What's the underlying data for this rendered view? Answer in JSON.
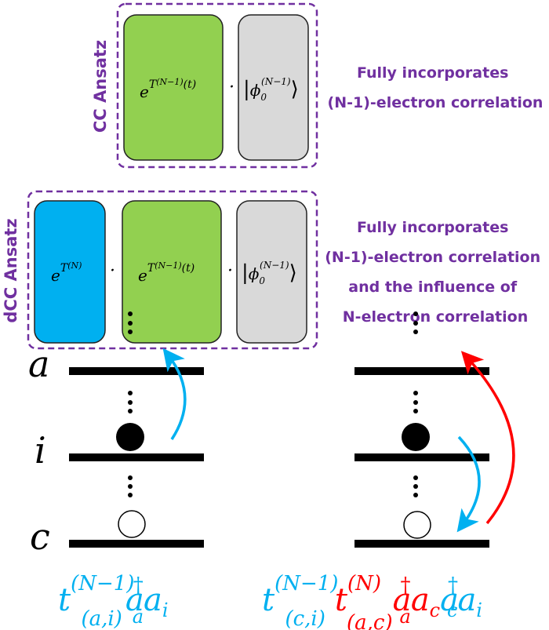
{
  "colors": {
    "purple": "#7030a0",
    "green": "#92d050",
    "blue": "#00b0f0",
    "gray": "#d9d9d9",
    "red": "#ff0000",
    "cyan": "#00b0f0"
  },
  "cc": {
    "label": "CC Ansatz",
    "exp_base": "e",
    "exp_sup": "T",
    "exp_sup_paren": "(N−1)",
    "exp_sup_t": "(t)",
    "dot": "·",
    "ket_phi": "ϕ",
    "ket_sub": "0",
    "ket_sup": "(N−1)",
    "description": [
      "Fully incorporates",
      "(N-1)-electron correlation"
    ]
  },
  "dcc": {
    "label": "dCC Ansatz",
    "expN_base": "e",
    "expN_sup": "T",
    "expN_sup_paren": "(N)",
    "exp_base": "e",
    "exp_sup": "T",
    "exp_sup_paren": "(N−1)",
    "exp_sup_t": "(t)",
    "dot": "·",
    "ket_phi": "ϕ",
    "ket_sub": "0",
    "ket_sup": "(N−1)",
    "description": [
      "Fully incorporates",
      "(N-1)-electron correlation",
      "and the influence of",
      "N-electron correlation"
    ]
  },
  "levels": {
    "a": "a",
    "i": "i",
    "c": "c",
    "ellipsis": "⋮"
  },
  "formula_left": {
    "t": "t",
    "t_sup": "(N−1)",
    "t_sub": "(a,i)",
    "op1": "a",
    "op1_sup": "†",
    "op1_sub": "a",
    "op2": "a",
    "op2_sub": "i"
  },
  "formula_right": {
    "t1": "t",
    "t1_sup": "(N−1)",
    "t1_sub": "(c,i)",
    "t2": "t",
    "t2_sup": "(N)",
    "t2_sub": "(a,c)",
    "op1": "a",
    "op1_sup": "†",
    "op1_sub": "a",
    "op2": "a",
    "op2_sub": "c",
    "op3": "a",
    "op3_sup": "†",
    "op3_sub": "c",
    "op4": "a",
    "op4_sub": "i"
  }
}
